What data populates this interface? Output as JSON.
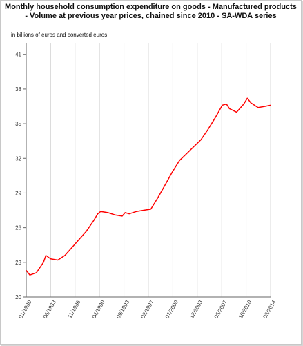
{
  "chart_data": {
    "type": "line",
    "title": "Monthly household consumption expenditure on goods - Manufactured products - Volume at previous year prices, chained since 2010 - SA-WDA series",
    "title_lines": [
      "Monthly household consumption expenditure on goods - Manufactured products",
      "- Volume at previous year prices, chained since 2010 - SA-WDA series"
    ],
    "unit_label": "in billions of euros and converted euros",
    "xlabel": "",
    "ylabel": "",
    "ylim": [
      20,
      42
    ],
    "y_ticks": [
      20,
      23,
      26,
      29,
      32,
      35,
      38,
      41
    ],
    "x_ticks": [
      "01/1980",
      "06/1983",
      "11/1986",
      "04/1990",
      "09/1993",
      "02/1997",
      "07/2000",
      "12/2003",
      "05/2007",
      "10/2010",
      "03/2014"
    ],
    "grid": "vertical",
    "line_color": "#ff0000",
    "series": [
      {
        "name": "",
        "x": [
          "1980-01",
          "1980-07",
          "1981-06",
          "1982-06",
          "1982-10",
          "1983-06",
          "1984-06",
          "1985-06",
          "1986-06",
          "1987-06",
          "1988-06",
          "1989-06",
          "1990-01",
          "1990-06",
          "1991-06",
          "1992-06",
          "1993-06",
          "1993-11",
          "1994-06",
          "1995-06",
          "1996-06",
          "1997-06",
          "1998-06",
          "1999-06",
          "2000-06",
          "2001-06",
          "2002-06",
          "2003-06",
          "2004-06",
          "2005-06",
          "2006-06",
          "2007-06",
          "2008-01",
          "2008-06",
          "2009-06",
          "2010-06",
          "2010-12",
          "2011-06",
          "2012-06",
          "2013-06",
          "2014-03"
        ],
        "values": [
          22.3,
          21.9,
          22.1,
          23.0,
          23.6,
          23.3,
          23.2,
          23.6,
          24.3,
          25.0,
          25.7,
          26.6,
          27.2,
          27.4,
          27.3,
          27.1,
          27.0,
          27.3,
          27.2,
          27.4,
          27.5,
          27.6,
          28.6,
          29.7,
          30.8,
          31.8,
          32.4,
          33.0,
          33.6,
          34.5,
          35.5,
          36.6,
          36.7,
          36.3,
          36.0,
          36.7,
          37.2,
          36.8,
          36.4,
          36.5,
          36.6
        ]
      }
    ]
  }
}
